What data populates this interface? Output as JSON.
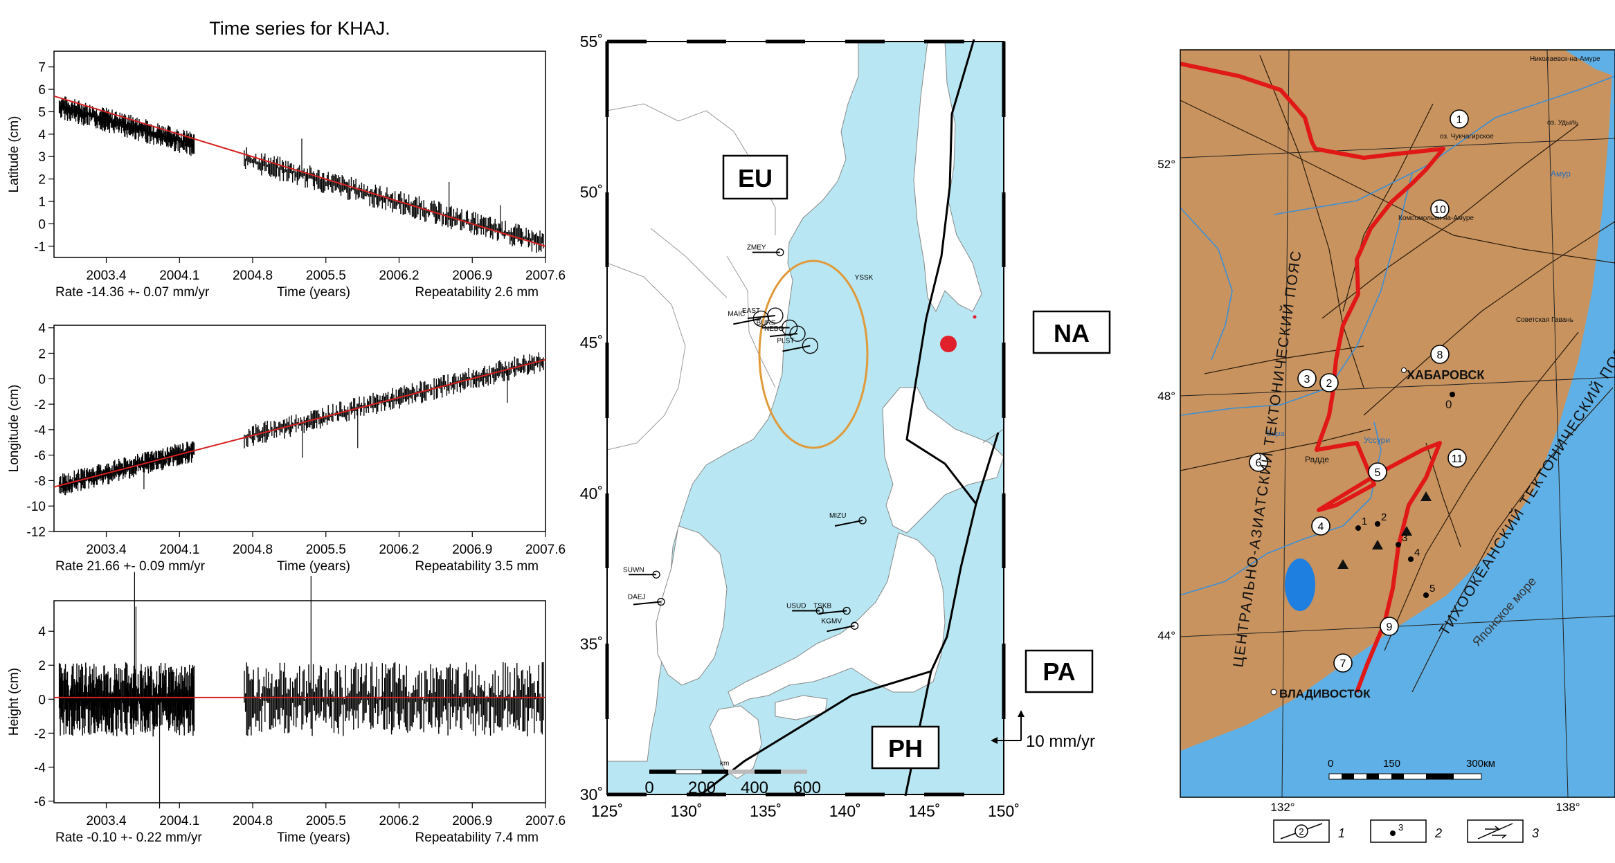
{
  "chart_data": [
    {
      "type": "line",
      "title": "Time series for KHAJ.",
      "xlabel": "Time (years)",
      "x_ticks": [
        "2003.4",
        "2004.1",
        "2004.8",
        "2005.5",
        "2006.2",
        "2006.9",
        "2007.6"
      ],
      "xlim": [
        2002.9,
        2007.6
      ],
      "gap": [
        2004.24,
        2004.72
      ],
      "panels": [
        {
          "ylabel": "Latitude (cm)",
          "ylim": [
            -1.5,
            7.7
          ],
          "y_ticks": [
            7,
            6,
            5,
            4,
            3,
            2,
            1,
            0,
            -1
          ],
          "trend": {
            "x": [
              2002.9,
              2007.6
            ],
            "y": [
              5.7,
              -1.0
            ]
          },
          "series_start_y": 5.3,
          "series_end_y": -0.9,
          "noise_amp": 0.55,
          "rate_label": "Rate -14.36 +- 0.07 mm/yr",
          "repeat_label": "Repeatability 2.6 mm"
        },
        {
          "ylabel": "Longitude (cm)",
          "ylim": [
            -12,
            4.2
          ],
          "y_ticks": [
            4,
            2,
            0,
            -2,
            -4,
            -6,
            -8,
            -10,
            -12
          ],
          "trend": {
            "x": [
              2002.9,
              2007.6
            ],
            "y": [
              -8.5,
              1.5
            ]
          },
          "series_start_y": -8.5,
          "series_end_y": 1.5,
          "noise_amp": 0.9,
          "rate_label": "Rate 21.66 +- 0.09 mm/yr",
          "repeat_label": "Repeatability 3.5 mm"
        },
        {
          "ylabel": "Height (cm)",
          "ylim": [
            -6.1,
            5.8
          ],
          "y_ticks": [
            4,
            2,
            0,
            -2,
            -4,
            -6
          ],
          "trend": {
            "x": [
              2002.9,
              2007.6
            ],
            "y": [
              0.1,
              0.1
            ]
          },
          "series_start_y": 0,
          "series_end_y": 0,
          "noise_amp": 2.2,
          "rate_label": "Rate -0.10 +- 0.22 mm/yr",
          "repeat_label": "Repeatability 7.4 mm"
        }
      ]
    },
    {
      "type": "map",
      "x_ticks": [
        "125˚",
        "130˚",
        "135˚",
        "140˚",
        "145˚",
        "150˚"
      ],
      "y_ticks": [
        "55˚",
        "50˚",
        "45˚",
        "40˚",
        "35˚",
        "30˚"
      ],
      "xlim": [
        125,
        150
      ],
      "ylim": [
        30,
        55
      ],
      "plates": [
        "EU",
        "NA",
        "PA",
        "PH"
      ],
      "stations": [
        {
          "name": "ZMEY",
          "lon": 135.9,
          "lat": 48.0
        },
        {
          "name": "EAST",
          "lon": 135.6,
          "lat": 45.9
        },
        {
          "name": "MAIC",
          "lon": 134.7,
          "lat": 45.8
        },
        {
          "name": "BURS",
          "lon": 136.5,
          "lat": 45.5
        },
        {
          "name": "NEBO",
          "lon": 137.0,
          "lat": 45.3
        },
        {
          "name": "PLST",
          "lon": 137.8,
          "lat": 44.9
        },
        {
          "name": "SUWN",
          "lon": 128.1,
          "lat": 37.3
        },
        {
          "name": "DAEJ",
          "lon": 128.4,
          "lat": 36.4
        },
        {
          "name": "MIZU",
          "lon": 141.1,
          "lat": 39.1
        },
        {
          "name": "USUD",
          "lon": 138.4,
          "lat": 36.1
        },
        {
          "name": "TSKB",
          "lon": 140.1,
          "lat": 36.1
        },
        {
          "name": "KGMV",
          "lon": 140.6,
          "lat": 35.6
        },
        {
          "name": "YSSK",
          "lon": 142.7,
          "lat": 47.0
        }
      ],
      "scale_label": "10 mm/yr",
      "km_label": "km",
      "km_ticks": [
        "0",
        "200",
        "400",
        "600"
      ]
    },
    {
      "type": "map",
      "lat_ticks": [
        "52°",
        "48°",
        "44°"
      ],
      "lon_ticks": [
        "132°",
        "138°"
      ],
      "labels": {
        "belt_west": "ЦЕНТРАЛЬНО-АЗИАТСКИЙ ТЕКТОНИЧЕСКИЙ ПОЯС",
        "belt_east": "ТИХООКЕАНСКИЙ ТЕКТОНИЧЕСКИЙ ПОЯС",
        "sea": "Японское море",
        "khabarovsk": "ХАБАРОВСК",
        "vladivostok": "ВЛАДИВОСТОК",
        "nikolaevsk": "Николаевск-на-Амуре",
        "komsomolsk": "Комсомольск-на-Амуре",
        "sovetskaya": "Советская Гавань",
        "amur": "Амур",
        "udyl": "оз. Удыль",
        "chukchagir": "оз. Чукчагирское",
        "radde": "Радде",
        "ussuri": "Уссури",
        "bira": "Бира",
        "zero": "0"
      },
      "circle_numbers": [
        "1",
        "2",
        "3",
        "4",
        "5",
        "6",
        "7",
        "8",
        "9",
        "10",
        "11"
      ],
      "dot_numbers": [
        "1",
        "2",
        "3",
        "4",
        "5"
      ],
      "scale": {
        "label": "300км",
        "ticks": [
          "0",
          "150"
        ]
      },
      "legend": [
        {
          "symbol": "2",
          "label": "1"
        },
        {
          "symbol": "3",
          "label": "2"
        },
        {
          "symbol": "",
          "label": "3"
        }
      ]
    }
  ]
}
